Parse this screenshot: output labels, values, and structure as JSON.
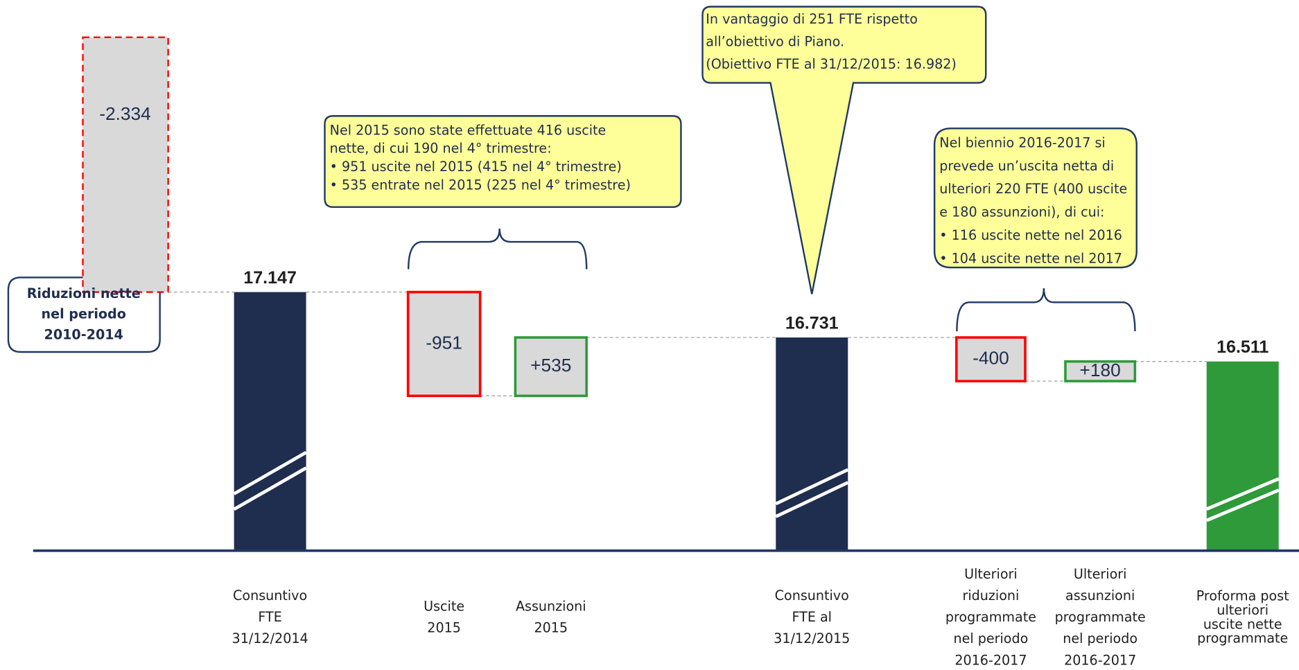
{
  "chart_data": {
    "type": "waterfall",
    "categories": [
      [
        "Consuntivo",
        "FTE",
        "31/12/2014"
      ],
      [
        "Uscite",
        "2015"
      ],
      [
        "Assunzioni",
        "2015"
      ],
      [
        "Consuntivo",
        "FTE al",
        "31/12/2015"
      ],
      [
        "Ulteriori",
        "riduzioni",
        "programmate",
        "nel periodo",
        "2016-2017"
      ],
      [
        "Ulteriori",
        "assunzioni",
        "programmate",
        "nel periodo",
        "2016-2017"
      ],
      [
        "Proforma post",
        "ulteriori",
        "uscite nette",
        "programmate"
      ]
    ],
    "values": [
      17147,
      -951,
      535,
      16731,
      -400,
      180,
      16511
    ],
    "value_labels": [
      "17.147",
      "-951",
      "+535",
      "16.731",
      "-400",
      "+180",
      "16.511"
    ],
    "kinds": [
      "total",
      "decrease",
      "increase",
      "total",
      "decrease",
      "increase",
      "total"
    ],
    "total_color": "#1f2d4e",
    "final_color": "#2e9a3a",
    "delta_fill": "#d9d9d9",
    "decrease_color": "#ff0000",
    "increase_color": "#2e9a3a",
    "prior": {
      "value": -2334,
      "value_label": "-2.334",
      "callout": [
        "Riduzioni nette",
        "nel periodo",
        "2010-2014"
      ],
      "color": "#ff0000"
    },
    "annotations": [
      {
        "lines": [
          "Nel 2015 sono state effettuate 416 uscite",
          "nette, di cui 190 nel  4° trimestre:",
          "• 951 uscite nel 2015 (415 nel 4° trimestre)",
          "• 535 entrate nel 2015 (225 nel 4° trimestre)"
        ]
      },
      {
        "lines": [
          "In vantaggio di 251 FTE rispetto",
          "all’obiettivo di Piano.",
          "(Obiettivo FTE al 31/12/2015: 16.982)"
        ]
      },
      {
        "lines": [
          "Nel biennio 2016-2017 si",
          "prevede un’uscita netta di",
          "ulteriori 220 FTE (400 uscite",
          "e 180 assunzioni), di cui:",
          "• 116 uscite nette nel 2016",
          "• 104 uscite nette nel 2017"
        ]
      }
    ]
  }
}
